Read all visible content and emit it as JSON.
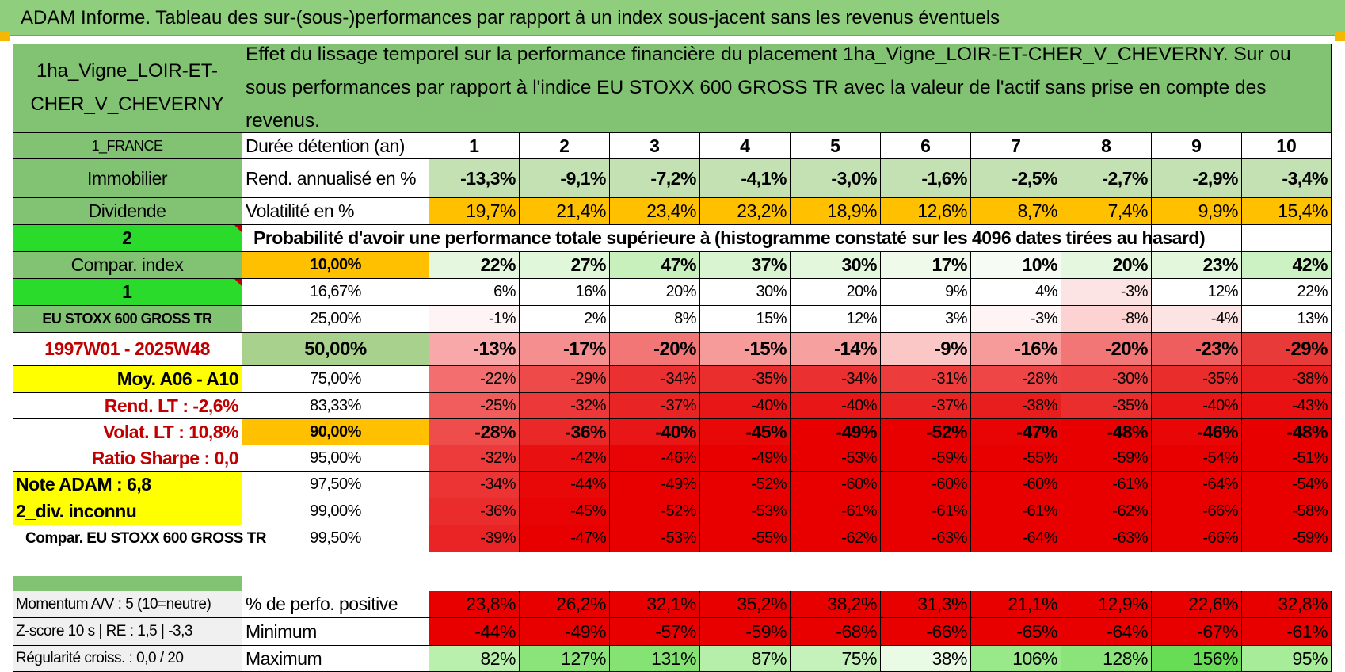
{
  "title": "ADAM Informe. Tableau des sur-(sous-)performances par rapport à un index sous-jacent sans les revenus éventuels",
  "asset_name": "1ha_Vigne_LOIR-ET-CHER_V_CHEVERNY",
  "description": "Effet du lissage temporel sur la performance financière du placement 1ha_Vigne_LOIR-ET-CHER_V_CHEVERNY. Sur ou sous performances par rapport à l'indice EU STOXX 600 GROSS TR avec la valeur de l'actif sans prise en compte des revenus.",
  "left": {
    "country": "1_FRANCE",
    "category": "Immobilier",
    "dividend": "Dividende",
    "num2": "2",
    "compar_index": "Compar. index",
    "num1": "1",
    "index_name": "EU STOXX 600 GROSS TR",
    "period": "1997W01 - 2025W48",
    "moy": "Moy. A06 - A10",
    "rend_lt": "Rend. LT :    -2,6%",
    "volat_lt": "Volat. LT :    10,8%",
    "sharpe": "Ratio Sharpe :     0,0",
    "note": "Note ADAM : 6,8",
    "div": "2_div. inconnu",
    "compar_full": "Compar. EU STOXX 600 GROSS TR",
    "momentum": "Momentum A/V : 5 (10=neutre)",
    "zscore": "Z-score 10 s | RE : 1,5 | -3,3",
    "regularite": "Régularité croiss. : 0,0 / 20"
  },
  "labels": {
    "duree": "Durée détention (an)",
    "rend": "Rend. annualisé en %",
    "vol": "Volatilité en %",
    "proba": "Probabilité d'avoir une performance totale supérieure à (histogramme constaté sur les 4096 dates tirées au hasard)",
    "pos": "% de perfo. positive",
    "min": "Minimum",
    "max": "Maximum"
  },
  "years": [
    "1",
    "2",
    "3",
    "4",
    "5",
    "6",
    "7",
    "8",
    "9",
    "10"
  ],
  "rend": [
    "-13,3%",
    "-9,1%",
    "-7,2%",
    "-4,1%",
    "-3,0%",
    "-1,6%",
    "-2,5%",
    "-2,7%",
    "-2,9%",
    "-3,4%"
  ],
  "vol": [
    "19,7%",
    "21,4%",
    "23,4%",
    "23,2%",
    "18,9%",
    "12,6%",
    "8,7%",
    "7,4%",
    "9,9%",
    "15,4%"
  ],
  "quantile_rows": [
    {
      "q": "10,00%",
      "vals": [
        "22%",
        "27%",
        "47%",
        "37%",
        "30%",
        "17%",
        "10%",
        "20%",
        "23%",
        "42%"
      ]
    },
    {
      "q": "16,67%",
      "vals": [
        "6%",
        "16%",
        "20%",
        "30%",
        "20%",
        "9%",
        "4%",
        "-3%",
        "12%",
        "22%"
      ]
    },
    {
      "q": "25,00%",
      "vals": [
        "-1%",
        "2%",
        "8%",
        "15%",
        "12%",
        "3%",
        "-3%",
        "-8%",
        "-4%",
        "13%"
      ]
    },
    {
      "q": "50,00%",
      "vals": [
        "-13%",
        "-17%",
        "-20%",
        "-15%",
        "-14%",
        "-9%",
        "-16%",
        "-20%",
        "-23%",
        "-29%"
      ]
    },
    {
      "q": "75,00%",
      "vals": [
        "-22%",
        "-29%",
        "-34%",
        "-35%",
        "-34%",
        "-31%",
        "-28%",
        "-30%",
        "-35%",
        "-38%"
      ]
    },
    {
      "q": "83,33%",
      "vals": [
        "-25%",
        "-32%",
        "-37%",
        "-40%",
        "-40%",
        "-37%",
        "-38%",
        "-35%",
        "-40%",
        "-43%"
      ]
    },
    {
      "q": "90,00%",
      "vals": [
        "-28%",
        "-36%",
        "-40%",
        "-45%",
        "-49%",
        "-52%",
        "-47%",
        "-48%",
        "-46%",
        "-48%"
      ]
    },
    {
      "q": "95,00%",
      "vals": [
        "-32%",
        "-42%",
        "-46%",
        "-49%",
        "-53%",
        "-59%",
        "-55%",
        "-59%",
        "-54%",
        "-51%"
      ]
    },
    {
      "q": "97,50%",
      "vals": [
        "-34%",
        "-44%",
        "-49%",
        "-52%",
        "-60%",
        "-60%",
        "-60%",
        "-61%",
        "-64%",
        "-54%"
      ]
    },
    {
      "q": "99,00%",
      "vals": [
        "-36%",
        "-45%",
        "-52%",
        "-53%",
        "-61%",
        "-61%",
        "-61%",
        "-62%",
        "-66%",
        "-58%"
      ]
    },
    {
      "q": "99,50%",
      "vals": [
        "-39%",
        "-47%",
        "-53%",
        "-55%",
        "-62%",
        "-63%",
        "-64%",
        "-63%",
        "-66%",
        "-59%"
      ]
    }
  ],
  "pos": [
    "23,8%",
    "26,2%",
    "32,1%",
    "35,2%",
    "38,2%",
    "31,3%",
    "21,1%",
    "12,9%",
    "22,6%",
    "32,8%"
  ],
  "min": [
    "-44%",
    "-49%",
    "-57%",
    "-59%",
    "-68%",
    "-66%",
    "-65%",
    "-64%",
    "-67%",
    "-61%"
  ],
  "max": [
    "82%",
    "127%",
    "131%",
    "87%",
    "75%",
    "38%",
    "106%",
    "128%",
    "156%",
    "95%"
  ],
  "colors": {
    "title_bg": "#8fce7c",
    "label_green": "#82c373",
    "bright_green": "#2bdb2b",
    "yellow": "#ffff00",
    "orange": "#ffc000",
    "red_text": "#c00000"
  }
}
